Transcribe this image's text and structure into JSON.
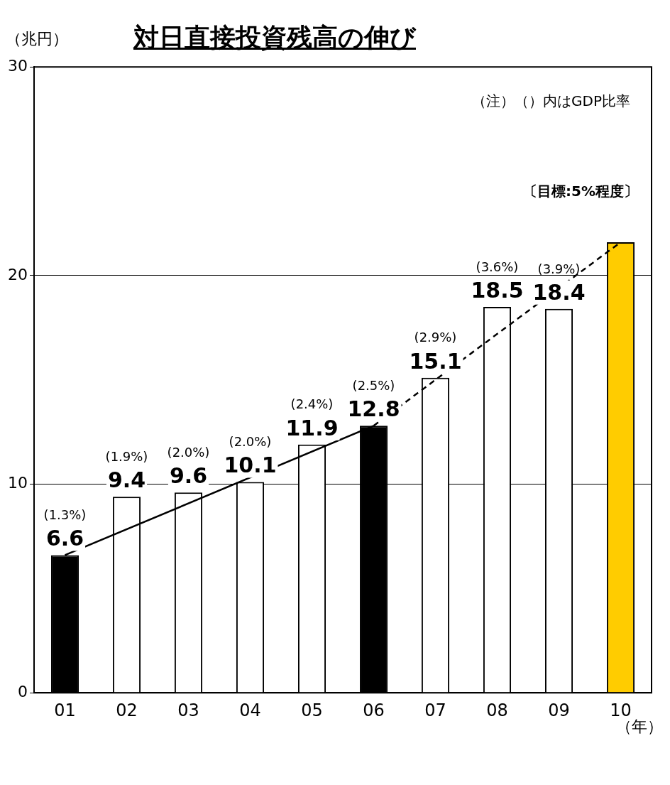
{
  "chart_data": {
    "type": "bar",
    "title": "対日直接投資残高の伸び",
    "ylabel": "（兆円）",
    "xlabel": "（年）",
    "categories": [
      "01",
      "02",
      "03",
      "04",
      "05",
      "06",
      "07",
      "08",
      "09",
      "10"
    ],
    "series": [
      {
        "values": [
          6.6,
          9.4,
          9.6,
          10.1,
          11.9,
          12.8,
          15.1,
          18.5,
          18.4,
          21.6
        ],
        "colors": [
          "#000000",
          "#ffffff",
          "#ffffff",
          "#ffffff",
          "#ffffff",
          "#000000",
          "#ffffff",
          "#ffffff",
          "#ffffff",
          "#ffcc00"
        ],
        "value_labels": [
          "6.6",
          "9.4",
          "9.6",
          "10.1",
          "11.9",
          "12.8",
          "15.1",
          "18.5",
          "18.4",
          null
        ]
      },
      {
        "type": "line",
        "color": "#000000",
        "line_style": "solid",
        "values": [
          6.6,
          null,
          null,
          null,
          null,
          12.8,
          null,
          null,
          null,
          null
        ]
      },
      {
        "type": "line",
        "color": "#000000",
        "line_style": "dashed",
        "values": [
          null,
          null,
          null,
          null,
          null,
          12.8,
          null,
          null,
          null,
          21.6
        ]
      }
    ],
    "ylim": [
      0,
      30
    ],
    "yticks": [
      0,
      10,
      20,
      30
    ],
    "grid": "y",
    "legend": false,
    "annotations": [
      "（注）（）内はGDP比率",
      "(1.3%)",
      "(1.9%)",
      "(2.0%)",
      "(2.0%)",
      "(2.4%)",
      "(2.5%)",
      "(2.9%)",
      "(3.6%)",
      "(3.9%)",
      "〔目標:5%程度〕"
    ]
  }
}
